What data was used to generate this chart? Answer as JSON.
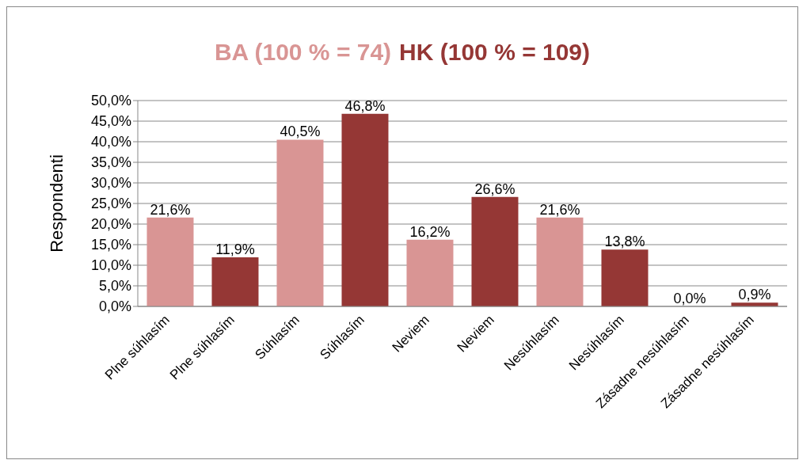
{
  "chart_data": {
    "type": "bar",
    "ylabel": "Respondenti",
    "categories": [
      "Plne súhlasím",
      "Plne súhlasím",
      "Súhlasím",
      "Súhlasím",
      "Neviem",
      "Neviem",
      "Nesúhlasím",
      "Nesúhlasím",
      "Zásadne nesúhlasím",
      "Zásadne nesúhlasím"
    ],
    "series": [
      {
        "name": "BA (100 % = 74)",
        "color": "#d99594",
        "values": [
          21.6,
          null,
          40.5,
          null,
          16.2,
          null,
          21.6,
          null,
          0,
          null
        ],
        "value_labels": [
          "21,6%",
          null,
          "40,5%",
          null,
          "16,2%",
          null,
          "21,6%",
          null,
          "0,0%",
          null
        ]
      },
      {
        "name": "HK (100 % = 109)",
        "color": "#953735",
        "values": [
          null,
          11.9,
          null,
          46.8,
          null,
          26.6,
          null,
          13.8,
          null,
          0.9
        ],
        "value_labels": [
          null,
          "11,9%",
          null,
          "46,8%",
          null,
          "26,6%",
          null,
          "13,8%",
          null,
          "0,9%"
        ]
      }
    ],
    "ylim": [
      0,
      50
    ],
    "yticks": [
      {
        "value": 0,
        "label": "0,0%"
      },
      {
        "value": 5,
        "label": "5,0%"
      },
      {
        "value": 10,
        "label": "10,0%"
      },
      {
        "value": 15,
        "label": "15,0%"
      },
      {
        "value": 20,
        "label": "20,0%"
      },
      {
        "value": 25,
        "label": "25,0%"
      },
      {
        "value": 30,
        "label": "30,0%"
      },
      {
        "value": 35,
        "label": "35,0%"
      },
      {
        "value": 40,
        "label": "40,0%"
      },
      {
        "value": 45,
        "label": "45,0%"
      },
      {
        "value": 50,
        "label": "50,0%"
      }
    ],
    "grid": "y",
    "legend": "top"
  }
}
